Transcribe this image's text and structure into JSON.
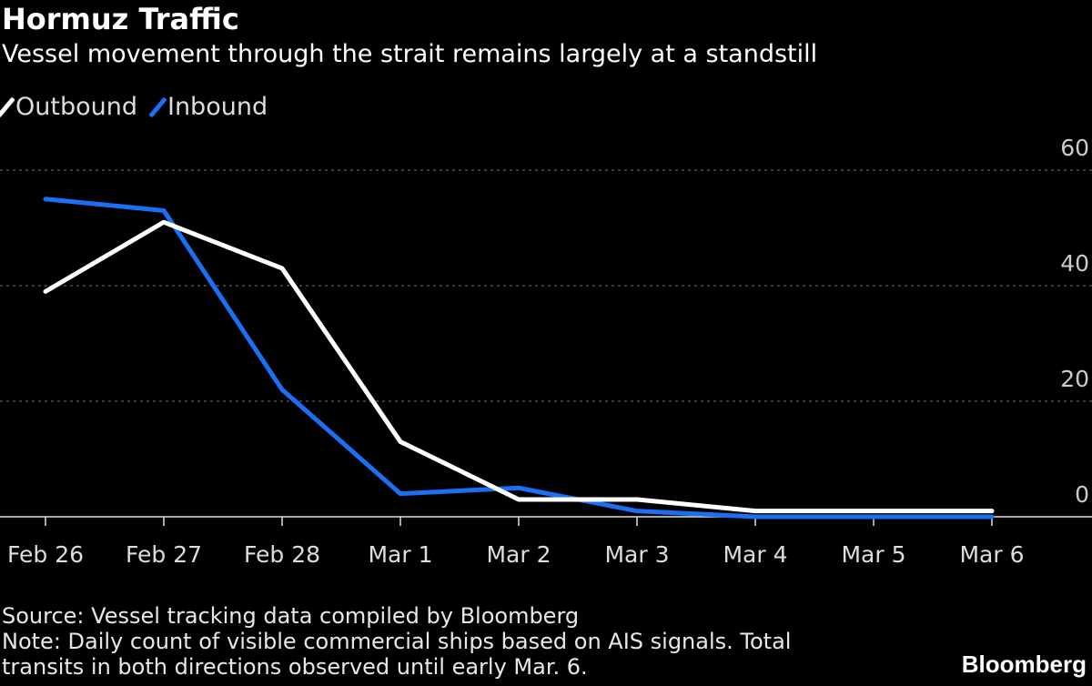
{
  "chart_data": {
    "type": "line",
    "title": "Hormuz Traffic",
    "subtitle": "Vessel movement through the strait remains largely at a standstill",
    "categories": [
      "Feb 26",
      "Feb 27",
      "Feb 28",
      "Mar 1",
      "Mar 2",
      "Mar 3",
      "Mar 4",
      "Mar 5",
      "Mar 6"
    ],
    "series": [
      {
        "name": "Outbound",
        "color": "#ffffff",
        "values": [
          39,
          51,
          43,
          13,
          3,
          3,
          1,
          1,
          1
        ]
      },
      {
        "name": "Inbound",
        "color": "#1a6ff5",
        "values": [
          55,
          53,
          22,
          4,
          5,
          1,
          0,
          0,
          0
        ]
      }
    ],
    "ylim": [
      0,
      60
    ],
    "yticks": [
      "0",
      "20",
      "40",
      "60"
    ],
    "ytick_values": [
      0,
      20,
      40,
      60
    ],
    "grid": true,
    "legend": "top-left",
    "source": "Source: Vessel tracking data compiled by Bloomberg",
    "note_line1": "Note: Daily count of visible commercial ships based on AIS signals. Total",
    "note_line2": "transits in both directions observed until early Mar. 6.",
    "brand": "Bloomberg"
  }
}
